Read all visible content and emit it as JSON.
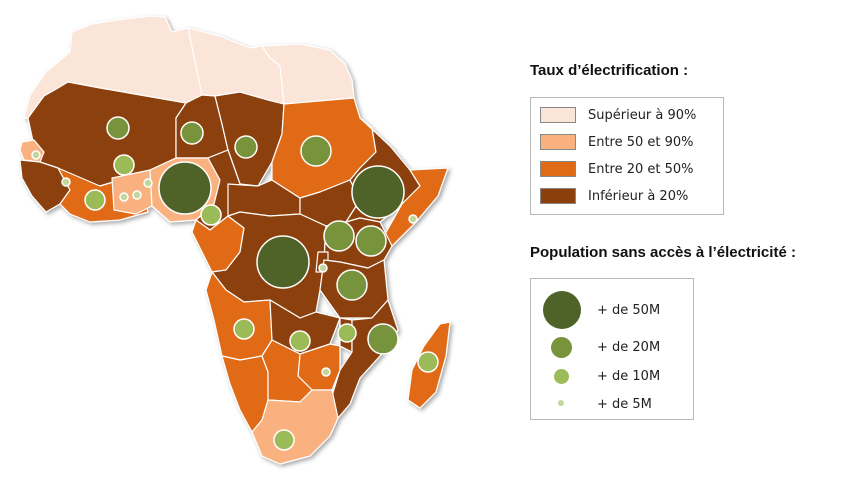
{
  "colors": {
    "gt90": "#fbe4d8",
    "c50_90": "#f9b27f",
    "c20_50": "#e06b17",
    "lt20": "#8c3f0b",
    "border": "#ffffff",
    "bubble_large": "#4f6228",
    "bubble_mid": "#77933c",
    "bubble_small": "#9bbb59",
    "bubble_tiny": "#c3d69b"
  },
  "legend_rate": {
    "title": "Taux d’électrification :",
    "items": [
      {
        "label": "Supérieur à 90%",
        "color": "#fbe4d8"
      },
      {
        "label": "Entre 50 et 90%",
        "color": "#f9b27f"
      },
      {
        "label": "Entre 20 et 50%",
        "color": "#e06b17"
      },
      {
        "label": "Inférieur à 20%",
        "color": "#8c3f0b"
      }
    ]
  },
  "legend_population": {
    "title": "Population sans accès à l’électricité :",
    "items": [
      {
        "label": "+ de 50M",
        "color": "#4f6228"
      },
      {
        "label": "+ de 20M",
        "color": "#77933c"
      },
      {
        "label": "+ de 10M",
        "color": "#9bbb59"
      },
      {
        "label": "+ de 5M",
        "color": "#c3d69b"
      }
    ]
  }
}
